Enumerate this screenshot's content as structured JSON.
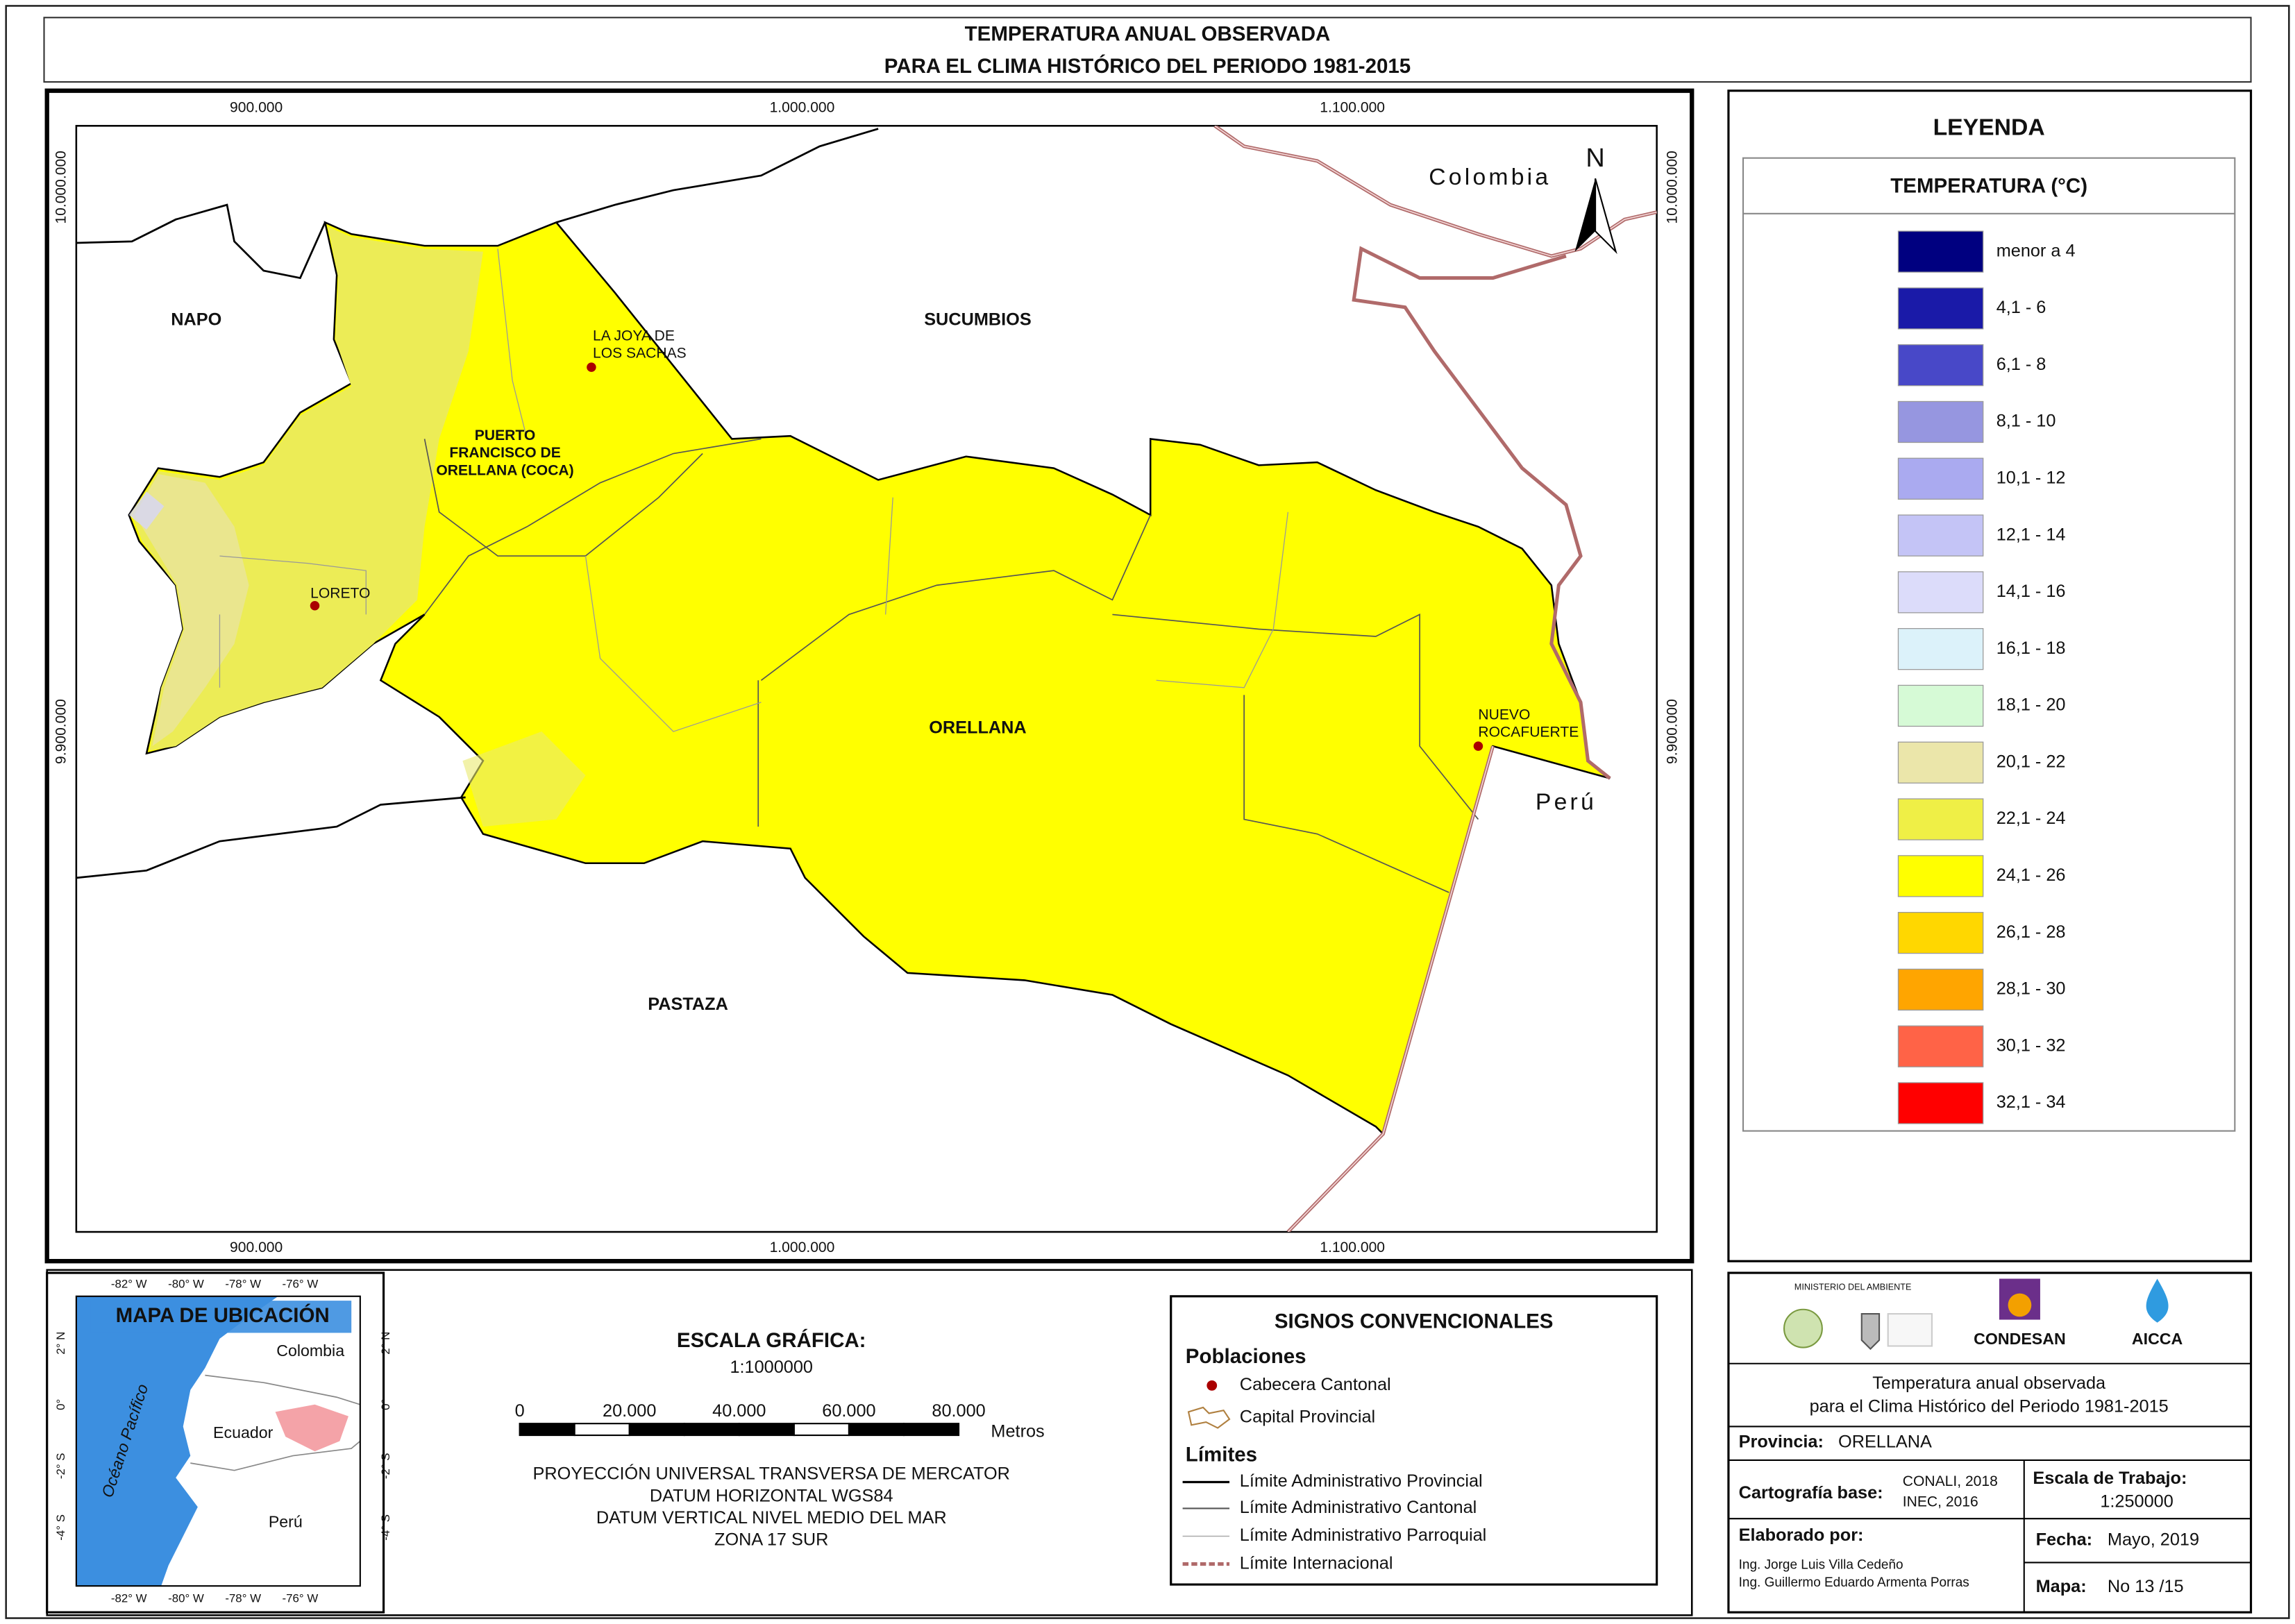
{
  "header": {
    "title_line1": "TEMPERATURA ANUAL OBSERVADA",
    "title_line2": "PARA EL CLIMA HISTÓRICO DEL PERIODO 1981-2015"
  },
  "map": {
    "x_ticks": [
      "900.000",
      "1.000.000",
      "1.100.000"
    ],
    "y_ticks": [
      "10.000.000",
      "9.900.000"
    ],
    "north": "N",
    "regions": {
      "napo": "NAPO",
      "sucumbios": "SUCUMBIOS",
      "orellana": "ORELLANA",
      "pastaza": "PASTAZA",
      "colombia": "Colombia",
      "peru": "Perú"
    },
    "towns": {
      "la_joya": [
        "LA JOYA DE",
        "LOS SACHAS"
      ],
      "capital": [
        "PUERTO",
        "FRANCISCO DE",
        "ORELLANA (COCA)"
      ],
      "loreto": [
        "LORETO"
      ],
      "rocafuerte": [
        "NUEVO",
        "ROCAFUERTE"
      ]
    }
  },
  "legend": {
    "title": "LEYENDA",
    "subtitle": "TEMPERATURA (°C)",
    "classes": [
      {
        "label": "menor a 4",
        "color": "#000080"
      },
      {
        "label": "4,1 - 6",
        "color": "#1a1aa8"
      },
      {
        "label": "6,1 - 8",
        "color": "#4848c8"
      },
      {
        "label": "8,1 - 10",
        "color": "#9696e0"
      },
      {
        "label": "10,1 - 12",
        "color": "#aaaaf0"
      },
      {
        "label": "12,1 - 14",
        "color": "#c4c4f6"
      },
      {
        "label": "14,1 - 16",
        "color": "#dcdcfa"
      },
      {
        "label": "16,1 - 18",
        "color": "#dcf2fa"
      },
      {
        "label": "18,1 - 20",
        "color": "#d6fad6"
      },
      {
        "label": "20,1 - 22",
        "color": "#ebe6aa"
      },
      {
        "label": "22,1 - 24",
        "color": "#efef46"
      },
      {
        "label": "24,1 - 26",
        "color": "#ffff00"
      },
      {
        "label": "26,1 - 28",
        "color": "#ffd700"
      },
      {
        "label": "28,1 - 30",
        "color": "#ffa500"
      },
      {
        "label": "30,1 - 32",
        "color": "#ff6347"
      },
      {
        "label": "32,1 - 34",
        "color": "#ff0000"
      }
    ]
  },
  "location_map": {
    "title": "MAPA DE UBICACIÓN",
    "lon_ticks": [
      "-82° W",
      "-80° W",
      "-78° W",
      "-76° W"
    ],
    "lat_ticks": [
      "2° N",
      "0°",
      "-2° S",
      "-4° S"
    ],
    "labels": {
      "colombia": "Colombia",
      "ecuador": "Ecuador",
      "peru": "Perú",
      "ocean": "Océano Pacífico"
    }
  },
  "scale": {
    "title": "ESCALA GRÁFICA:",
    "ratio": "1:1000000",
    "ticks": [
      "0",
      "20.000",
      "40.000",
      "60.000",
      "80.000"
    ],
    "unit": "Metros",
    "projection": [
      "PROYECCIÓN UNIVERSAL TRANSVERSA DE MERCATOR",
      "DATUM HORIZONTAL WGS84",
      "DATUM VERTICAL NIVEL MEDIO DEL MAR",
      "ZONA 17 SUR"
    ]
  },
  "conventions": {
    "title": "SIGNOS CONVENCIONALES",
    "populations_title": "Poblaciones",
    "cabecera": "Cabecera Cantonal",
    "capital": "Capital Provincial",
    "limits_title": "Límites",
    "limits": [
      "Límite Administrativo Provincial",
      "Límite Administrativo Cantonal",
      "Límite Administrativo Parroquial",
      "Límite Internacional"
    ]
  },
  "info": {
    "logos": {
      "ministerio": "MINISTERIO DEL AMBIENTE",
      "condesan": "CONDESAN",
      "aicca": "AICCA"
    },
    "description": [
      "Temperatura anual observada",
      "para el Clima Histórico del Periodo 1981-2015"
    ],
    "province_label": "Provincia:",
    "province": "ORELLANA",
    "cartography_label": "Cartografía base:",
    "cartography": [
      "CONALI, 2018",
      "INEC, 2016"
    ],
    "scale_label": "Escala de Trabajo:",
    "scale": "1:250000",
    "made_by_label": "Elaborado por:",
    "authors": [
      "Ing. Jorge Luis Villa Cedeño",
      "Ing. Guillermo Eduardo Armenta Porras"
    ],
    "date_label": "Fecha:",
    "date": "Mayo, 2019",
    "map_label": "Mapa:",
    "map_number": "No 13 /15"
  }
}
